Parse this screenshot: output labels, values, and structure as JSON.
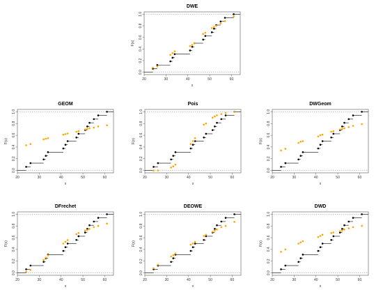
{
  "chart_data": [
    {
      "type": "scatter",
      "title": "DWE",
      "xlabel": "x",
      "ylabel": "F(x)",
      "xlim": [
        20,
        64
      ],
      "ylim": [
        0,
        1
      ],
      "xticks": [
        20,
        30,
        40,
        50,
        60
      ],
      "yticks": [
        0.0,
        0.2,
        0.4,
        0.6,
        0.8,
        1.0
      ],
      "series": [
        {
          "color": "#000000",
          "kind": "ecdf-step",
          "x": [
            24,
            26,
            32,
            33,
            34,
            41,
            42,
            43,
            47,
            48,
            51,
            52,
            53,
            55,
            57,
            61
          ],
          "y": [
            0.062,
            0.125,
            0.188,
            0.25,
            0.312,
            0.375,
            0.438,
            0.5,
            0.562,
            0.625,
            0.688,
            0.75,
            0.812,
            0.875,
            0.938,
            1.0
          ]
        },
        {
          "color": "#FFA500",
          "kind": "points",
          "x": [
            24,
            26,
            32,
            33,
            34,
            41,
            42,
            43,
            47,
            48,
            51,
            52,
            53,
            55,
            57,
            61
          ],
          "y": [
            0.08,
            0.1,
            0.3,
            0.33,
            0.36,
            0.45,
            0.47,
            0.5,
            0.66,
            0.68,
            0.76,
            0.78,
            0.8,
            0.84,
            0.88,
            0.96
          ]
        }
      ]
    },
    {
      "type": "scatter",
      "title": "GEOM",
      "xlabel": "x",
      "ylabel": "F(x)",
      "xlim": [
        20,
        64
      ],
      "ylim": [
        0,
        1
      ],
      "xticks": [
        20,
        30,
        40,
        50,
        60
      ],
      "yticks": [
        0.0,
        0.2,
        0.4,
        0.6,
        0.8,
        1.0
      ],
      "series": [
        {
          "color": "#000000",
          "kind": "ecdf-step",
          "x": [
            24,
            26,
            32,
            33,
            34,
            41,
            42,
            43,
            47,
            48,
            51,
            52,
            53,
            55,
            57,
            61
          ],
          "y": [
            0.062,
            0.125,
            0.188,
            0.25,
            0.312,
            0.375,
            0.438,
            0.5,
            0.562,
            0.625,
            0.688,
            0.75,
            0.812,
            0.875,
            0.938,
            1.0
          ]
        },
        {
          "color": "#FFA500",
          "kind": "points",
          "x": [
            24,
            26,
            32,
            33,
            34,
            41,
            42,
            43,
            47,
            48,
            51,
            52,
            53,
            55,
            57,
            61
          ],
          "y": [
            0.43,
            0.45,
            0.53,
            0.54,
            0.55,
            0.61,
            0.62,
            0.63,
            0.66,
            0.67,
            0.7,
            0.71,
            0.72,
            0.73,
            0.75,
            0.77
          ]
        }
      ]
    },
    {
      "type": "scatter",
      "title": "Pois",
      "xlabel": "x",
      "ylabel": "F(x)",
      "xlim": [
        20,
        64
      ],
      "ylim": [
        0,
        1
      ],
      "xticks": [
        20,
        30,
        40,
        50,
        60
      ],
      "yticks": [
        0.0,
        0.2,
        0.4,
        0.6,
        0.8,
        1.0
      ],
      "series": [
        {
          "color": "#000000",
          "kind": "ecdf-step",
          "x": [
            24,
            26,
            32,
            33,
            34,
            41,
            42,
            43,
            47,
            48,
            51,
            52,
            53,
            55,
            57,
            61
          ],
          "y": [
            0.062,
            0.125,
            0.188,
            0.25,
            0.312,
            0.375,
            0.438,
            0.5,
            0.562,
            0.625,
            0.688,
            0.75,
            0.812,
            0.875,
            0.938,
            1.0
          ]
        },
        {
          "color": "#FFA500",
          "kind": "points",
          "x": [
            24,
            26,
            32,
            33,
            34,
            41,
            42,
            43,
            47,
            48,
            51,
            52,
            53,
            55,
            57,
            61
          ],
          "y": [
            0.0,
            0.0,
            0.05,
            0.07,
            0.1,
            0.45,
            0.5,
            0.55,
            0.78,
            0.8,
            0.9,
            0.92,
            0.94,
            0.96,
            0.98,
            1.0
          ]
        }
      ]
    },
    {
      "type": "scatter",
      "title": "DWGeom",
      "xlabel": "x",
      "ylabel": "F(x)",
      "xlim": [
        20,
        64
      ],
      "ylim": [
        0,
        1
      ],
      "xticks": [
        20,
        30,
        40,
        50,
        60
      ],
      "yticks": [
        0.0,
        0.2,
        0.4,
        0.6,
        0.8,
        1.0
      ],
      "series": [
        {
          "color": "#000000",
          "kind": "ecdf-step",
          "x": [
            24,
            26,
            32,
            33,
            34,
            41,
            42,
            43,
            47,
            48,
            51,
            52,
            53,
            55,
            57,
            61
          ],
          "y": [
            0.062,
            0.125,
            0.188,
            0.25,
            0.312,
            0.375,
            0.438,
            0.5,
            0.562,
            0.625,
            0.688,
            0.75,
            0.812,
            0.875,
            0.938,
            1.0
          ]
        },
        {
          "color": "#FFA500",
          "kind": "points",
          "x": [
            24,
            26,
            32,
            33,
            34,
            41,
            42,
            43,
            47,
            48,
            51,
            52,
            53,
            55,
            57,
            61
          ],
          "y": [
            0.34,
            0.37,
            0.47,
            0.49,
            0.5,
            0.58,
            0.6,
            0.61,
            0.66,
            0.67,
            0.7,
            0.71,
            0.72,
            0.74,
            0.76,
            0.79
          ]
        }
      ]
    },
    {
      "type": "scatter",
      "title": "DFrechet",
      "xlabel": "x",
      "ylabel": "F(x)",
      "xlim": [
        20,
        64
      ],
      "ylim": [
        0,
        1
      ],
      "xticks": [
        20,
        30,
        40,
        50,
        60
      ],
      "yticks": [
        0.0,
        0.2,
        0.4,
        0.6,
        0.8,
        1.0
      ],
      "series": [
        {
          "color": "#000000",
          "kind": "ecdf-step",
          "x": [
            24,
            26,
            32,
            33,
            34,
            41,
            42,
            43,
            47,
            48,
            51,
            52,
            53,
            55,
            57,
            61
          ],
          "y": [
            0.062,
            0.125,
            0.188,
            0.25,
            0.312,
            0.375,
            0.438,
            0.5,
            0.562,
            0.625,
            0.688,
            0.75,
            0.812,
            0.875,
            0.938,
            1.0
          ]
        },
        {
          "color": "#FFA500",
          "kind": "points",
          "x": [
            24,
            26,
            32,
            33,
            34,
            41,
            42,
            43,
            47,
            48,
            51,
            52,
            53,
            55,
            57,
            61
          ],
          "y": [
            0.02,
            0.05,
            0.22,
            0.26,
            0.3,
            0.5,
            0.53,
            0.56,
            0.66,
            0.68,
            0.72,
            0.73,
            0.75,
            0.78,
            0.8,
            0.84
          ]
        }
      ]
    },
    {
      "type": "scatter",
      "title": "DEOWE",
      "xlabel": "x",
      "ylabel": "F(x)",
      "xlim": [
        20,
        64
      ],
      "ylim": [
        0,
        1
      ],
      "xticks": [
        20,
        30,
        40,
        50,
        60
      ],
      "yticks": [
        0.0,
        0.2,
        0.4,
        0.6,
        0.8,
        1.0
      ],
      "series": [
        {
          "color": "#000000",
          "kind": "ecdf-step",
          "x": [
            24,
            26,
            32,
            33,
            34,
            41,
            42,
            43,
            47,
            48,
            51,
            52,
            53,
            55,
            57,
            61
          ],
          "y": [
            0.062,
            0.125,
            0.188,
            0.25,
            0.312,
            0.375,
            0.438,
            0.5,
            0.562,
            0.625,
            0.688,
            0.75,
            0.812,
            0.875,
            0.938,
            1.0
          ]
        },
        {
          "color": "#FFA500",
          "kind": "points",
          "x": [
            24,
            26,
            32,
            33,
            34,
            41,
            42,
            43,
            47,
            48,
            51,
            52,
            53,
            55,
            57,
            61
          ],
          "y": [
            0.08,
            0.14,
            0.28,
            0.3,
            0.33,
            0.48,
            0.5,
            0.53,
            0.63,
            0.65,
            0.7,
            0.72,
            0.74,
            0.78,
            0.8,
            0.87
          ]
        }
      ]
    },
    {
      "type": "scatter",
      "title": "DWD",
      "xlabel": "x",
      "ylabel": "F(x)",
      "xlim": [
        20,
        64
      ],
      "ylim": [
        0,
        1
      ],
      "xticks": [
        20,
        30,
        40,
        50,
        60
      ],
      "yticks": [
        0.0,
        0.2,
        0.4,
        0.6,
        0.8,
        1.0
      ],
      "series": [
        {
          "color": "#000000",
          "kind": "ecdf-step",
          "x": [
            24,
            26,
            32,
            33,
            34,
            41,
            42,
            43,
            47,
            48,
            51,
            52,
            53,
            55,
            57,
            61
          ],
          "y": [
            0.062,
            0.125,
            0.188,
            0.25,
            0.312,
            0.375,
            0.438,
            0.5,
            0.562,
            0.625,
            0.688,
            0.75,
            0.812,
            0.875,
            0.938,
            1.0
          ]
        },
        {
          "color": "#FFA500",
          "kind": "points",
          "x": [
            24,
            26,
            32,
            33,
            34,
            41,
            42,
            43,
            47,
            48,
            51,
            52,
            53,
            55,
            57,
            61
          ],
          "y": [
            0.36,
            0.4,
            0.5,
            0.52,
            0.54,
            0.61,
            0.63,
            0.65,
            0.68,
            0.69,
            0.71,
            0.72,
            0.74,
            0.76,
            0.78,
            0.8
          ]
        }
      ]
    }
  ]
}
